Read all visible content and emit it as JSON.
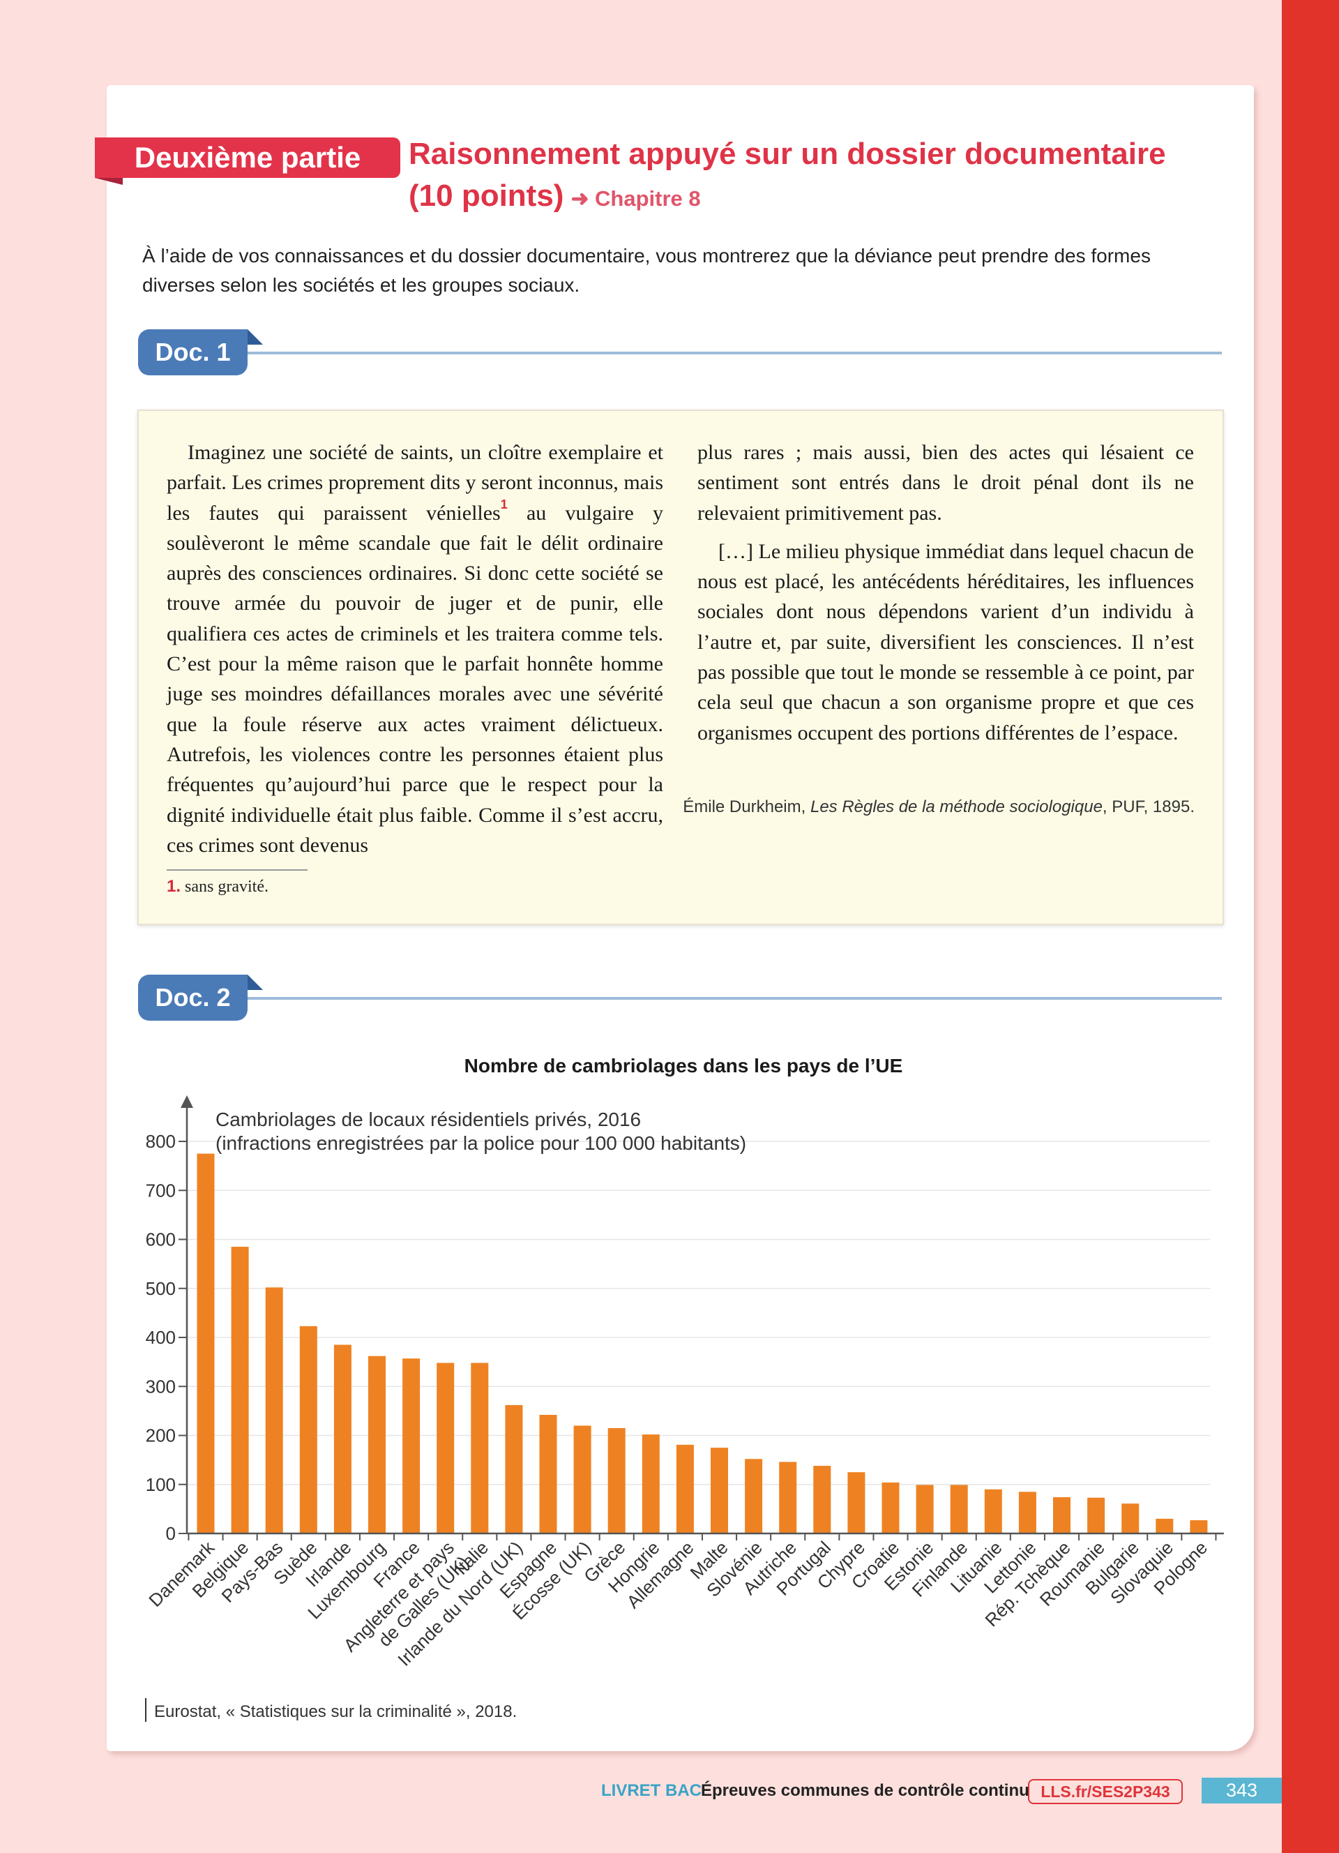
{
  "header": {
    "part_label": "Deuxième partie",
    "title_line1": "Raisonnement appuyé sur un dossier documentaire",
    "title_line2": "(10 points)",
    "chapter_ref": "➜ Chapitre 8"
  },
  "prompt": "À l’aide de vos connaissances et du dossier documentaire, vous montrerez que la déviance peut prendre des formes diverses selon les sociétés et les groupes sociaux.",
  "doc1": {
    "label": "Doc. 1",
    "col1_p1a": "Imaginez une société de saints, un cloître exemplaire et parfait. Les crimes proprement dits y seront inconnus, mais les fautes qui paraissent vénielles",
    "footnote_mark": "1",
    "col1_p1b": " au vulgaire y soulèveront le même scandale que fait le délit ordinaire auprès des consciences ordinaires. Si donc cette société se trouve armée du pouvoir de juger et de punir, elle qualifiera ces actes de criminels et les traitera comme tels. C’est pour la même raison que le parfait honnête homme juge ses moindres défaillances morales avec une sévérité que la foule réserve aux actes vraiment délictueux. Autrefois, les violences contre les personnes étaient plus fréquentes qu’aujourd’hui parce que le respect pour la dignité individuelle était plus faible. Comme il s’est accru, ces crimes sont devenus",
    "col2_p1": "plus rares ; mais aussi, bien des actes qui lésaient ce sentiment sont entrés dans le droit pénal dont ils ne relevaient primitivement pas.",
    "col2_p2": "[…] Le milieu physique immédiat dans lequel chacun de nous est placé, les antécédents héréditaires, les influences sociales dont nous dépendons varient d’un individu à l’autre et, par suite, diversifient les consciences. Il n’est pas possible que tout le monde se ressemble à ce point, par cela seul que chacun a son organisme propre et que ces organismes occupent des portions différentes de l’espace.",
    "citation_author": "Émile Durkheim, ",
    "citation_title": "Les Règles de la méthode sociologique",
    "citation_pub": ", PUF, 1895.",
    "footnote_num": "1.",
    "footnote_text": " sans gravité."
  },
  "doc2": {
    "label": "Doc. 2",
    "source": "Eurostat, « Statistiques sur la criminalité », 2018."
  },
  "chart_data": {
    "type": "bar",
    "title": "Nombre de cambriolages dans les pays de l’UE",
    "ylabel_line1": "Cambriolages de locaux résidentiels privés, 2016",
    "ylabel_line2": "(infractions enregistrées par la police pour 100 000 habitants)",
    "ylim": [
      0,
      800
    ],
    "yticks": [
      0,
      100,
      200,
      300,
      400,
      500,
      600,
      700,
      800
    ],
    "grid": true,
    "bar_color": "#ee8222",
    "categories": [
      "Danemark",
      "Belgique",
      "Pays-Bas",
      "Suède",
      "Irlande",
      "Luxembourg",
      "France",
      "Angleterre et pays\nde Galles (UK)",
      "Italie",
      "Irlande du Nord (UK)",
      "Espagne",
      "Écosse (UK)",
      "Grèce",
      "Hongrie",
      "Allemagne",
      "Malte",
      "Slovénie",
      "Autriche",
      "Portugal",
      "Chypre",
      "Croatie",
      "Estonie",
      "Finlande",
      "Lituanie",
      "Lettonie",
      "Rép. Tchèque",
      "Roumanie",
      "Bulgarie",
      "Slovaquie",
      "Pologne"
    ],
    "values": [
      775,
      585,
      502,
      423,
      385,
      362,
      357,
      348,
      348,
      262,
      242,
      220,
      215,
      202,
      181,
      175,
      152,
      146,
      138,
      125,
      104,
      99,
      99,
      90,
      85,
      74,
      73,
      61,
      30,
      27
    ]
  },
  "footer": {
    "livret": "LIVRET BAC",
    "epreuves": "Épreuves communes de contrôle continu",
    "link": "LLS.fr/SES2P343",
    "page": "343"
  },
  "colors": {
    "accent_red": "#e3334a",
    "doc_blue": "#4b7bb7",
    "quote_bg": "#fdfbe6",
    "page_bg": "#fde0dd",
    "right_bar": "#e1332a"
  }
}
